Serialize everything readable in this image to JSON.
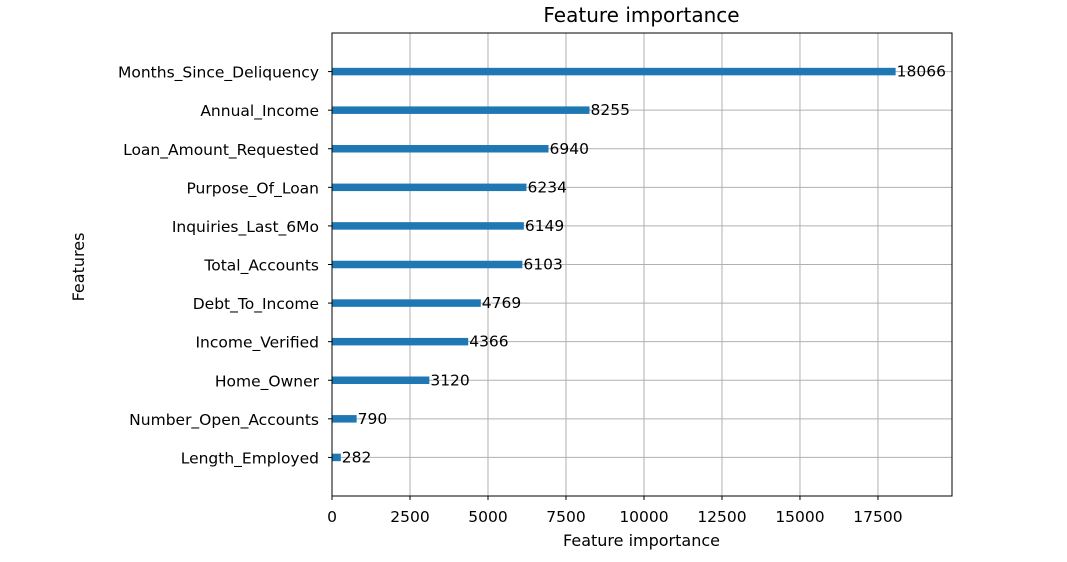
{
  "chart_data": {
    "type": "bar",
    "orientation": "horizontal",
    "title": "Feature importance",
    "xlabel": "Feature importance",
    "ylabel": "Features",
    "categories": [
      "Months_Since_Deliquency",
      "Annual_Income",
      "Loan_Amount_Requested",
      "Purpose_Of_Loan",
      "Inquiries_Last_6Mo",
      "Total_Accounts",
      "Debt_To_Income",
      "Income_Verified",
      "Home_Owner",
      "Number_Open_Accounts",
      "Length_Employed"
    ],
    "values": [
      18066,
      8255,
      6940,
      6234,
      6149,
      6103,
      4769,
      4366,
      3120,
      790,
      282
    ],
    "value_labels": [
      "18066",
      "8255",
      "6940",
      "6234",
      "6149",
      "6103",
      "4769",
      "4366",
      "3120",
      "790",
      "282"
    ],
    "xlim": [
      0,
      19873
    ],
    "xticks": [
      0,
      2500,
      5000,
      7500,
      10000,
      12500,
      15000,
      17500
    ],
    "xtick_labels": [
      "0",
      "2500",
      "5000",
      "7500",
      "10000",
      "12500",
      "15000",
      "17500"
    ],
    "grid": true,
    "bar_color": "#1f77b4"
  }
}
